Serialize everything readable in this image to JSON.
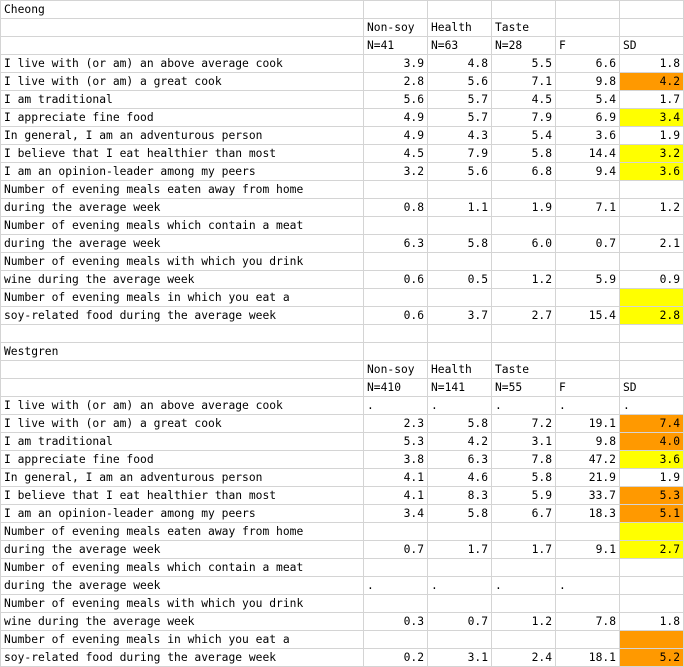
{
  "colors": {
    "yellow": "#ffff00",
    "orange": "#ff9900",
    "gridline": "#d4d4d4"
  },
  "rows": [
    {
      "type": "title",
      "a": "Cheong"
    },
    {
      "type": "hdr",
      "cols": [
        "Non-soy",
        "Health",
        "Taste",
        "",
        ""
      ]
    },
    {
      "type": "hdr",
      "cols": [
        "N=41",
        "N=63",
        "N=28",
        "F",
        "SD"
      ]
    },
    {
      "type": "data",
      "a": "I live with (or am) an above average cook",
      "b": "3.9",
      "c": "4.8",
      "d": "5.5",
      "e": "6.6",
      "f": "1.8"
    },
    {
      "type": "data",
      "a": "I live with (or am) a great cook",
      "b": "2.8",
      "c": "5.6",
      "d": "7.1",
      "e": "9.8",
      "f": "4.2",
      "hl": "orange"
    },
    {
      "type": "data",
      "a": "I am traditional",
      "b": "5.6",
      "c": "5.7",
      "d": "4.5",
      "e": "5.4",
      "f": "1.7"
    },
    {
      "type": "data",
      "a": "I appreciate fine food",
      "b": "4.9",
      "c": "5.7",
      "d": "7.9",
      "e": "6.9",
      "f": "3.4",
      "hl": "yellow"
    },
    {
      "type": "data",
      "a": "In general, I am an adventurous person",
      "b": "4.9",
      "c": "4.3",
      "d": "5.4",
      "e": "3.6",
      "f": "1.9"
    },
    {
      "type": "data",
      "a": "I believe that I eat healthier than most",
      "b": "4.5",
      "c": "7.9",
      "d": "5.8",
      "e": "14.4",
      "f": "3.2",
      "hl": "yellow"
    },
    {
      "type": "data",
      "a": "I am an opinion-leader among my peers",
      "b": "3.2",
      "c": "5.6",
      "d": "6.8",
      "e": "9.4",
      "f": "3.6",
      "hl": "yellow"
    },
    {
      "type": "data2",
      "a1": "Number of evening meals eaten away from home",
      "a2": "during the average week",
      "b": "0.8",
      "c": "1.1",
      "d": "1.9",
      "e": "7.1",
      "f": "1.2"
    },
    {
      "type": "data2",
      "a1": "Number of evening meals which contain a meat",
      "a2": "during the average week",
      "b": "6.3",
      "c": "5.8",
      "d": "6.0",
      "e": "0.7",
      "f": "2.1"
    },
    {
      "type": "data2",
      "a1": "Number of evening meals with which you drink",
      "a2": "wine during the average week",
      "b": "0.6",
      "c": "0.5",
      "d": "1.2",
      "e": "5.9",
      "f": "0.9"
    },
    {
      "type": "data2",
      "a1": "Number of evening meals in which you eat a",
      "a2": "soy-related food during the average week",
      "b": "0.6",
      "c": "3.7",
      "d": "2.7",
      "e": "15.4",
      "f": "2.8",
      "hl": "yellow"
    },
    {
      "type": "blank"
    },
    {
      "type": "title",
      "a": "Westgren"
    },
    {
      "type": "hdr",
      "cols": [
        "Non-soy",
        "Health",
        "Taste",
        "",
        ""
      ]
    },
    {
      "type": "hdr",
      "cols": [
        "N=410",
        "N=141",
        "N=55",
        "F",
        "SD"
      ]
    },
    {
      "type": "data",
      "a": "I live with (or am) an above average cook",
      "b": ".",
      "c": ".",
      "d": ".",
      "e": ".",
      "f": ".",
      "align": "left"
    },
    {
      "type": "data",
      "a": "I live with (or am) a great cook",
      "b": "2.3",
      "c": "5.8",
      "d": "7.2",
      "e": "19.1",
      "f": "7.4",
      "hl": "orange"
    },
    {
      "type": "data",
      "a": "I am traditional",
      "b": "5.3",
      "c": "4.2",
      "d": "3.1",
      "e": "9.8",
      "f": "4.0",
      "hl": "orange"
    },
    {
      "type": "data",
      "a": "I appreciate fine food",
      "b": "3.8",
      "c": "6.3",
      "d": "7.8",
      "e": "47.2",
      "f": "3.6",
      "hl": "yellow"
    },
    {
      "type": "data",
      "a": "In general, I am an adventurous person",
      "b": "4.1",
      "c": "4.6",
      "d": "5.8",
      "e": "21.9",
      "f": "1.9"
    },
    {
      "type": "data",
      "a": "I believe that I eat healthier than most",
      "b": "4.1",
      "c": "8.3",
      "d": "5.9",
      "e": "33.7",
      "f": "5.3",
      "hl": "orange"
    },
    {
      "type": "data",
      "a": "I am an opinion-leader among my peers",
      "b": "3.4",
      "c": "5.8",
      "d": "6.7",
      "e": "18.3",
      "f": "5.1",
      "hl": "orange"
    },
    {
      "type": "data2",
      "a1": "Number of evening meals eaten away from home",
      "a2": "during the average week",
      "b": "0.7",
      "c": "1.7",
      "d": "1.7",
      "e": "9.1",
      "f": "2.7",
      "hl": "yellow"
    },
    {
      "type": "data2",
      "a1": "Number of evening meals which contain a meat",
      "a2": "during the average week",
      "b": ".",
      "c": ".",
      "d": ".",
      "e": ".",
      "f": "",
      "align": "left"
    },
    {
      "type": "data2",
      "a1": "Number of evening meals with which you drink",
      "a2": "wine during the average week",
      "b": "0.3",
      "c": "0.7",
      "d": "1.2",
      "e": "7.8",
      "f": "1.8"
    },
    {
      "type": "data2",
      "a1": "Number of evening meals in which you eat a",
      "a2": "soy-related food during the average week",
      "b": "0.2",
      "c": "3.1",
      "d": "2.4",
      "e": "18.1",
      "f": "5.2",
      "hl": "orange"
    }
  ]
}
